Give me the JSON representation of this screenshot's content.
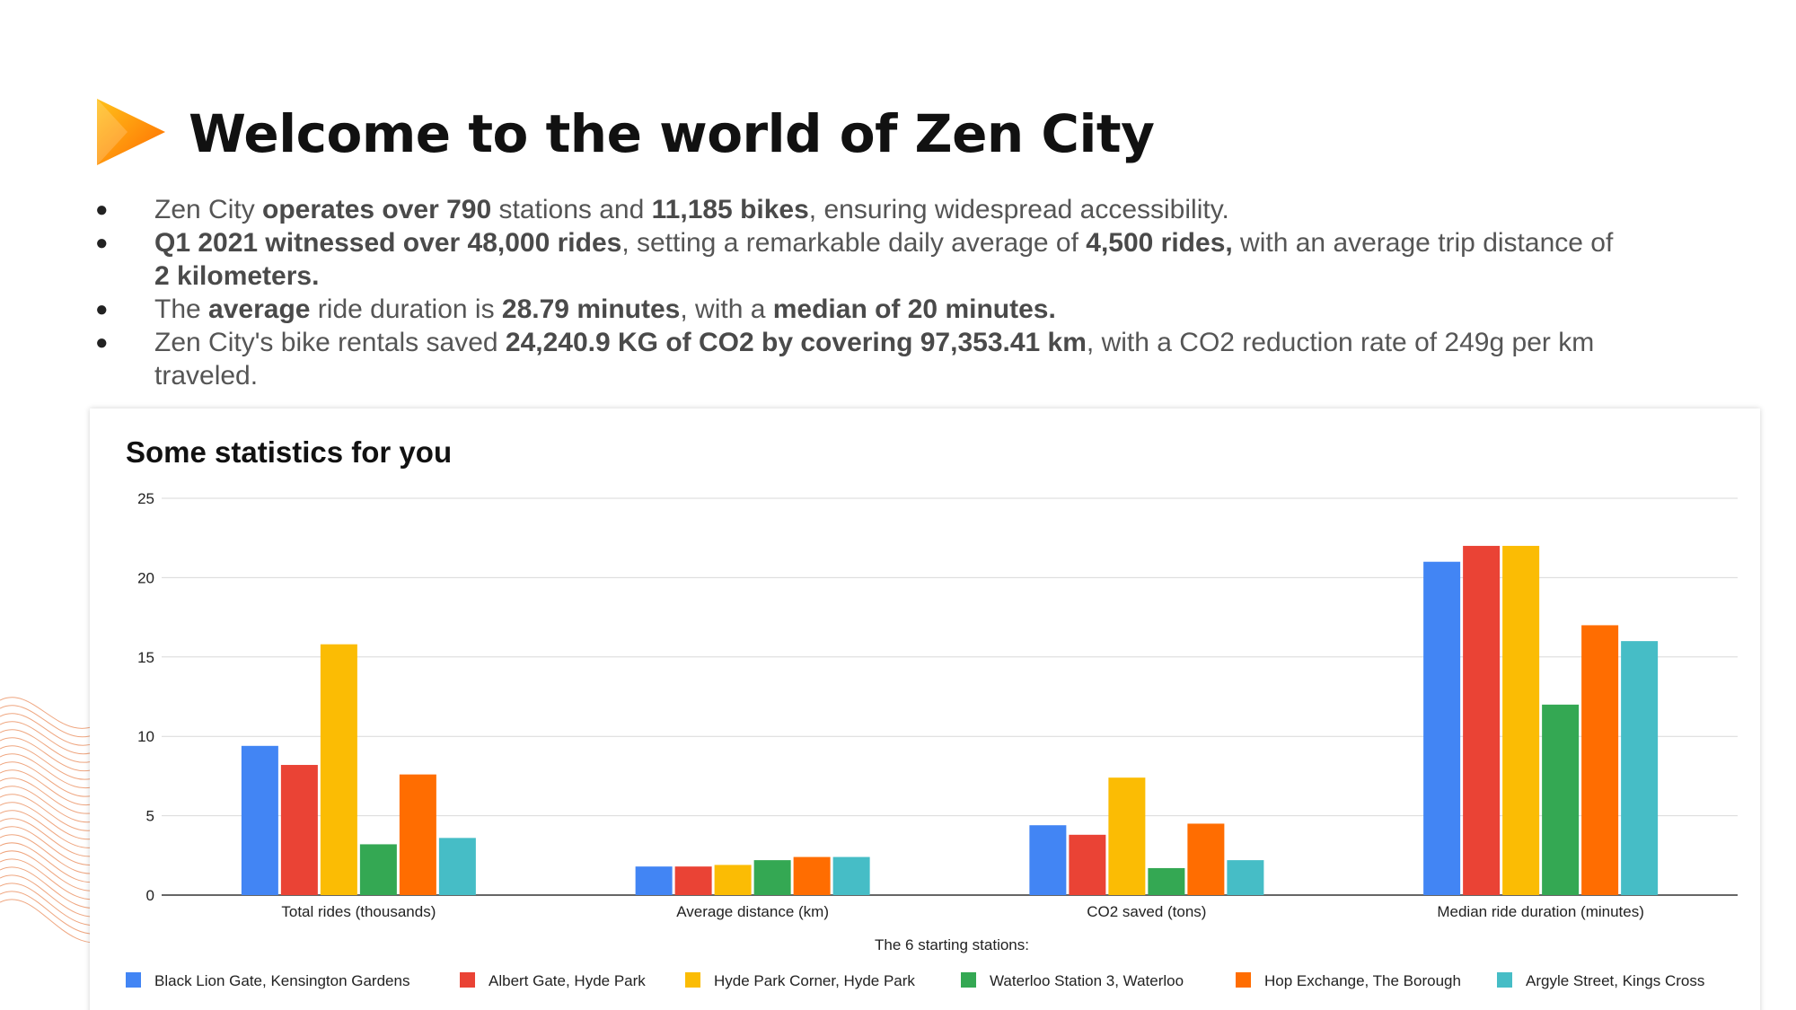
{
  "slide": {
    "title": "Welcome to the world of Zen City",
    "bullets": [
      {
        "dot": "●",
        "line1": [
          {
            "t": "Zen City ",
            "b": false
          },
          {
            "t": "operates over 790",
            "b": true
          },
          {
            "t": " stations and ",
            "b": false
          },
          {
            "t": "11,185 bikes",
            "b": true
          },
          {
            "t": ", ensuring widespread accessibility.",
            "b": false
          }
        ]
      },
      {
        "dot": "●",
        "line1": [
          {
            "t": "Q1 2021 witnessed over 48,000 rides",
            "b": true
          },
          {
            "t": ", setting a remarkable daily average of ",
            "b": false
          },
          {
            "t": "4,500 rides,",
            "b": true
          },
          {
            "t": " with an average trip distance of ",
            "b": false
          },
          {
            "t": "2 kilometers.",
            "b": true
          }
        ]
      },
      {
        "dot": "●",
        "line1": [
          {
            "t": "The ",
            "b": false
          },
          {
            "t": "average",
            "b": true
          },
          {
            "t": " ride duration is ",
            "b": false
          },
          {
            "t": "28.79 minutes",
            "b": true
          },
          {
            "t": ", with a ",
            "b": false
          },
          {
            "t": "median of 20 minutes.",
            "b": true
          }
        ]
      },
      {
        "dot": "●",
        "line1": [
          {
            "t": "Zen City's bike rentals saved ",
            "b": false
          },
          {
            "t": "24,240.9 KG of CO2 by covering 97,353.41 km",
            "b": true
          },
          {
            "t": ", with a CO2 reduction rate of 249g per km traveled.",
            "b": false
          }
        ]
      }
    ]
  },
  "colors": {
    "logo_top": "#ffc21a",
    "logo_bottom": "#ff6a00",
    "wave": "#e8804a"
  },
  "chart_data": {
    "type": "bar",
    "title": "Some statistics for you",
    "categories": [
      "Total rides (thousands)",
      "Average distance (km)",
      "CO2 saved (tons)",
      "Median ride duration (minutes)"
    ],
    "ylim": [
      0,
      25
    ],
    "yticks": [
      0,
      5,
      10,
      15,
      20,
      25
    ],
    "grid": true,
    "legend_title": "The 6 starting stations:",
    "legend_position": "bottom",
    "series": [
      {
        "name": "Black Lion Gate, Kensington Gardens",
        "color": "#4285f4",
        "values": [
          9.4,
          1.8,
          4.4,
          21
        ]
      },
      {
        "name": "Albert Gate, Hyde Park",
        "color": "#ea4335",
        "values": [
          8.2,
          1.8,
          3.8,
          22
        ]
      },
      {
        "name": "Hyde Park Corner, Hyde Park",
        "color": "#fbbc04",
        "values": [
          15.8,
          1.9,
          7.4,
          22
        ]
      },
      {
        "name": "Waterloo Station 3, Waterloo",
        "color": "#34a853",
        "values": [
          3.2,
          2.2,
          1.7,
          12
        ]
      },
      {
        "name": "Hop Exchange, The Borough",
        "color": "#ff6d01",
        "values": [
          7.6,
          2.4,
          4.5,
          17
        ]
      },
      {
        "name": "Argyle Street, Kings Cross",
        "color": "#46bdc6",
        "values": [
          3.6,
          2.4,
          2.2,
          16
        ]
      }
    ]
  }
}
